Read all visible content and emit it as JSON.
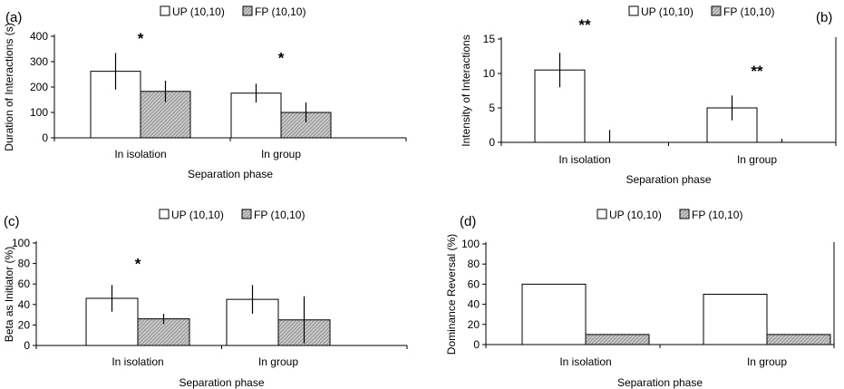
{
  "legend_swatch_colors": {
    "UP": "#ffffff",
    "FP": "#c8c8c8"
  },
  "chart_data": [
    {
      "panel": "(a)",
      "type": "bar",
      "categories": [
        "In isolation",
        "In group"
      ],
      "series": [
        {
          "name": "UP (10,10)",
          "values": [
            262,
            176
          ],
          "errors": [
            72,
            37
          ]
        },
        {
          "name": "FP (10,10)",
          "values": [
            183,
            100
          ],
          "errors": [
            42,
            39
          ]
        }
      ],
      "xlabel": "Separation phase",
      "ylabel": "Duration of Interactions (s)",
      "ylim": [
        0,
        400
      ],
      "yticks": [
        0,
        100,
        200,
        300,
        400
      ],
      "annotations": [
        {
          "category": 0,
          "text": "*",
          "value": 372
        },
        {
          "category": 1,
          "text": "*",
          "value": 295
        }
      ],
      "legend": "top"
    },
    {
      "panel": "(b)",
      "type": "bar",
      "categories": [
        "In isolation",
        "In group"
      ],
      "series": [
        {
          "name": "UP (10,10)",
          "values": [
            10.5,
            5.0
          ],
          "errors": [
            2.5,
            1.8
          ]
        },
        {
          "name": "FP (10,10)",
          "values": [
            0,
            0
          ],
          "errors": [
            1.8,
            0.5
          ]
        }
      ],
      "xlabel": "Separation phase",
      "ylabel": "Intensity of Interactions",
      "ylim": [
        0,
        15
      ],
      "yticks": [
        0,
        5,
        10,
        15
      ],
      "annotations": [
        {
          "category": 0,
          "text": "**",
          "value": 16.3
        },
        {
          "category": 1,
          "text": "**",
          "value": 9.6
        }
      ],
      "legend": "top-right"
    },
    {
      "panel": "(c)",
      "type": "bar",
      "categories": [
        "In isolation",
        "In group"
      ],
      "series": [
        {
          "name": "UP (10,10)",
          "values": [
            46,
            45
          ],
          "errors": [
            13,
            14
          ]
        },
        {
          "name": "FP (10,10)",
          "values": [
            26,
            25
          ],
          "errors": [
            5,
            23
          ]
        }
      ],
      "xlabel": "Separation phase",
      "ylabel": "Beta as Initiator (%)",
      "ylim": [
        0,
        100
      ],
      "yticks": [
        0,
        20,
        40,
        60,
        80,
        100
      ],
      "annotations": [
        {
          "category": 0,
          "text": "*",
          "value": 75
        }
      ],
      "legend": "top"
    },
    {
      "panel": "(d)",
      "type": "bar",
      "categories": [
        "In isolation",
        "In group"
      ],
      "series": [
        {
          "name": "UP (10,10)",
          "values": [
            60,
            50
          ],
          "errors": []
        },
        {
          "name": "FP (10,10)",
          "values": [
            10,
            10
          ],
          "errors": []
        }
      ],
      "xlabel": "Separation phase",
      "ylabel": "Dominance Reversal (%)",
      "ylim": [
        0,
        100
      ],
      "yticks": [
        0,
        20,
        40,
        60,
        80,
        100
      ],
      "annotations": [],
      "legend": "top"
    }
  ]
}
